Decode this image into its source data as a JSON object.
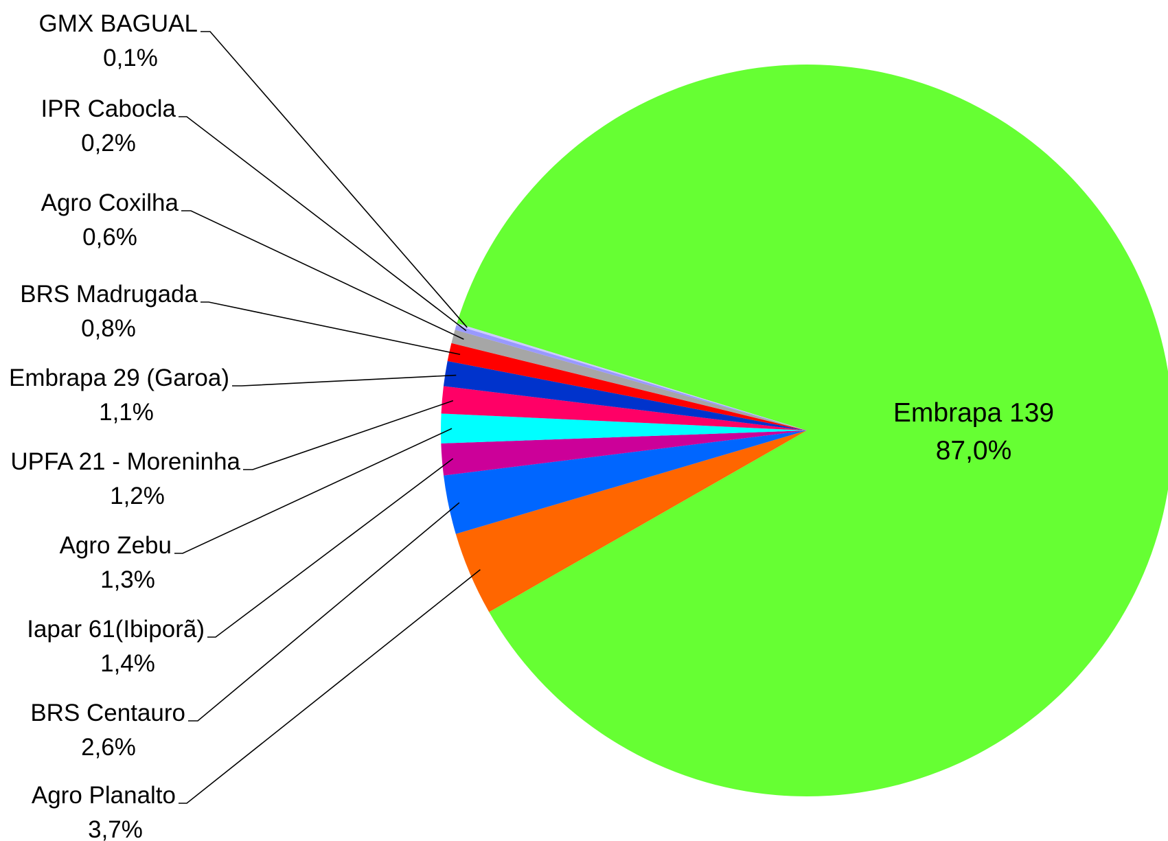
{
  "chart_data": {
    "type": "pie",
    "slices": [
      {
        "label": "Embrapa 139",
        "value_label": "87,0%",
        "value": 87.0,
        "color": "#66ff33"
      },
      {
        "label": "Agro Planalto",
        "value_label": "3,7%",
        "value": 3.7,
        "color": "#ff6600"
      },
      {
        "label": "BRS Centauro",
        "value_label": "2,6%",
        "value": 2.6,
        "color": "#0066ff"
      },
      {
        "label": "Iapar 61(Ibiporã)",
        "value_label": "1,4%",
        "value": 1.4,
        "color": "#cc0099"
      },
      {
        "label": "Agro Zebu",
        "value_label": "1,3%",
        "value": 1.3,
        "color": "#00ffff"
      },
      {
        "label": "UPFA 21 - Moreninha",
        "value_label": "1,2%",
        "value": 1.2,
        "color": "#ff0066"
      },
      {
        "label": "Embrapa 29 (Garoa)",
        "value_label": "1,1%",
        "value": 1.1,
        "color": "#0033cc"
      },
      {
        "label": "BRS Madrugada",
        "value_label": "0,8%",
        "value": 0.8,
        "color": "#ff0000"
      },
      {
        "label": "Agro Coxilha",
        "value_label": "0,6%",
        "value": 0.6,
        "color": "#a6a6a6"
      },
      {
        "label": "IPR Cabocla",
        "value_label": "0,2%",
        "value": 0.2,
        "color": "#9999ff"
      },
      {
        "label": "GMX BAGUAL",
        "value_label": "0,1%",
        "value": 0.1,
        "color": "#ccccff"
      }
    ]
  }
}
